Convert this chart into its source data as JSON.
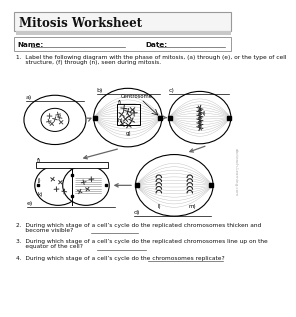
{
  "title": "Mitosis Worksheet",
  "name_label": "Name:",
  "date_label": "Date:",
  "q1": "1.  Label the following diagram with the phase of mitosis, (a) through (e), or the type of cell",
  "q1b": "     structure, (f) through (n), seen during mitosis.",
  "q2a": "2.  During which stage of a cell’s cycle do the replicated chromosomes thicken and",
  "q2b": "     become visible?",
  "q2line": [
    105,
    165
  ],
  "q3a": "3.  During which stage of a cell’s cycle do the replicated chromosomes line up on the",
  "q3b": "     equator of the cell?",
  "q3line": [
    112,
    175
  ],
  "q4a": "4.  During which stage of a cell’s cycle do the chromosomes replicate?",
  "q4line": [
    178,
    275
  ],
  "bg_color": "#ffffff",
  "header_bg": "#f5f5f5",
  "shadow_bg": "#c8c8c8",
  "border_color": "#999999",
  "text_color": "#111111",
  "centrosome_label": "Centrosome",
  "watermark": "abcteach-Learning.com",
  "label_a": "a)",
  "label_b": "b)",
  "label_c": "c)",
  "label_d": "d)",
  "label_e": "e)",
  "label_f": "f)",
  "label_g": "g)",
  "label_h": "h)",
  "label_i": "i)",
  "label_j": "j)",
  "label_k": "k)",
  "label_l": "l)",
  "label_m": "m)"
}
